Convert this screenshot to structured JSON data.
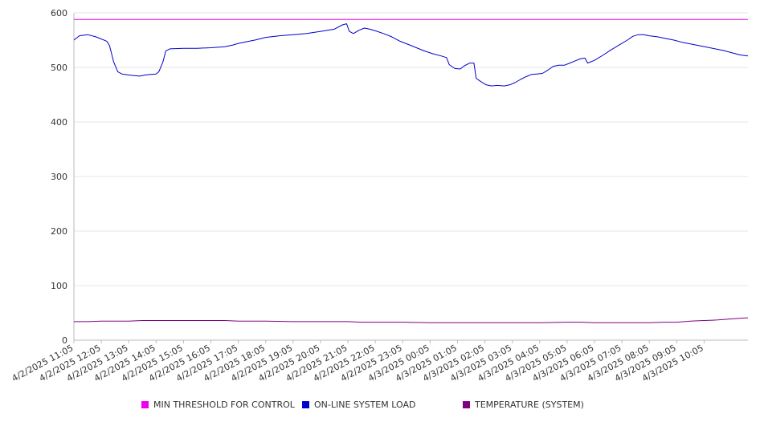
{
  "chart_data": {
    "type": "line",
    "x_ticks": [
      "4/2/2025 11:05",
      "4/2/2025 12:05",
      "4/2/2025 13:05",
      "4/2/2025 14:05",
      "4/2/2025 15:05",
      "4/2/2025 16:05",
      "4/2/2025 17:05",
      "4/2/2025 18:05",
      "4/2/2025 19:05",
      "4/2/2025 20:05",
      "4/2/2025 21:05",
      "4/2/2025 22:05",
      "4/2/2025 23:05",
      "4/3/2025 00:05",
      "4/3/2025 01:05",
      "4/3/2025 02:05",
      "4/3/2025 03:05",
      "4/3/2025 04:05",
      "4/3/2025 05:05",
      "4/3/2025 06:05",
      "4/3/2025 07:05",
      "4/3/2025 08:05",
      "4/3/2025 09:05",
      "4/3/2025 10:05"
    ],
    "y_ticks": [
      0,
      100,
      200,
      300,
      400,
      500,
      600
    ],
    "ylim": [
      0,
      600
    ],
    "xlim_hours": [
      0,
      24.6
    ],
    "grid": true,
    "legend_position": "bottom",
    "series": [
      {
        "name": "MIN THRESHOLD FOR CONTROL",
        "color": "#ee00ee",
        "points": [
          [
            0,
            588
          ],
          [
            24.6,
            588
          ]
        ]
      },
      {
        "name": "ON-LINE SYSTEM LOAD",
        "color": "#0000cc",
        "points": [
          [
            0,
            550
          ],
          [
            0.2,
            558
          ],
          [
            0.5,
            560
          ],
          [
            0.8,
            556
          ],
          [
            1.0,
            552
          ],
          [
            1.2,
            548
          ],
          [
            1.3,
            540
          ],
          [
            1.45,
            510
          ],
          [
            1.6,
            492
          ],
          [
            1.75,
            488
          ],
          [
            2.0,
            486
          ],
          [
            2.2,
            485
          ],
          [
            2.4,
            484
          ],
          [
            2.6,
            486
          ],
          [
            2.8,
            487
          ],
          [
            3.0,
            488
          ],
          [
            3.1,
            492
          ],
          [
            3.25,
            510
          ],
          [
            3.35,
            530
          ],
          [
            3.5,
            534
          ],
          [
            4.0,
            535
          ],
          [
            4.5,
            535
          ],
          [
            5.0,
            536
          ],
          [
            5.5,
            538
          ],
          [
            5.8,
            541
          ],
          [
            6.0,
            544
          ],
          [
            6.3,
            547
          ],
          [
            6.6,
            550
          ],
          [
            7.0,
            555
          ],
          [
            7.5,
            558
          ],
          [
            8.0,
            560
          ],
          [
            8.5,
            562
          ],
          [
            9.0,
            566
          ],
          [
            9.5,
            570
          ],
          [
            9.8,
            578
          ],
          [
            9.95,
            580
          ],
          [
            10.05,
            566
          ],
          [
            10.2,
            562
          ],
          [
            10.4,
            568
          ],
          [
            10.6,
            572
          ],
          [
            10.8,
            570
          ],
          [
            11.0,
            567
          ],
          [
            11.3,
            562
          ],
          [
            11.6,
            556
          ],
          [
            11.9,
            548
          ],
          [
            12.2,
            542
          ],
          [
            12.5,
            536
          ],
          [
            12.8,
            530
          ],
          [
            13.1,
            525
          ],
          [
            13.4,
            521
          ],
          [
            13.6,
            518
          ],
          [
            13.7,
            505
          ],
          [
            13.9,
            498
          ],
          [
            14.1,
            497
          ],
          [
            14.25,
            503
          ],
          [
            14.45,
            508
          ],
          [
            14.6,
            508
          ],
          [
            14.68,
            480
          ],
          [
            14.85,
            474
          ],
          [
            15.05,
            468
          ],
          [
            15.25,
            466
          ],
          [
            15.45,
            467
          ],
          [
            15.7,
            466
          ],
          [
            15.9,
            468
          ],
          [
            16.1,
            472
          ],
          [
            16.3,
            478
          ],
          [
            16.5,
            483
          ],
          [
            16.7,
            487
          ],
          [
            16.9,
            488
          ],
          [
            17.1,
            489
          ],
          [
            17.3,
            495
          ],
          [
            17.5,
            502
          ],
          [
            17.7,
            504
          ],
          [
            17.9,
            504
          ],
          [
            18.1,
            508
          ],
          [
            18.3,
            512
          ],
          [
            18.5,
            516
          ],
          [
            18.65,
            517
          ],
          [
            18.75,
            508
          ],
          [
            19.0,
            513
          ],
          [
            19.3,
            522
          ],
          [
            19.6,
            532
          ],
          [
            19.9,
            541
          ],
          [
            20.2,
            550
          ],
          [
            20.4,
            557
          ],
          [
            20.6,
            560
          ],
          [
            20.8,
            560
          ],
          [
            21.0,
            558
          ],
          [
            21.3,
            556
          ],
          [
            21.6,
            553
          ],
          [
            21.9,
            550
          ],
          [
            22.2,
            546
          ],
          [
            22.5,
            543
          ],
          [
            22.8,
            540
          ],
          [
            23.1,
            537
          ],
          [
            23.4,
            534
          ],
          [
            23.7,
            531
          ],
          [
            24.0,
            527
          ],
          [
            24.3,
            523
          ],
          [
            24.6,
            521
          ]
        ]
      },
      {
        "name": "TEMPERATURE (SYSTEM)",
        "color": "#800080",
        "points": [
          [
            0,
            34
          ],
          [
            0.5,
            34
          ],
          [
            1.0,
            35
          ],
          [
            1.5,
            35
          ],
          [
            2.0,
            35
          ],
          [
            2.5,
            36
          ],
          [
            3.0,
            36
          ],
          [
            3.5,
            36
          ],
          [
            4.0,
            36
          ],
          [
            4.5,
            36
          ],
          [
            5.0,
            36
          ],
          [
            5.5,
            36
          ],
          [
            6.0,
            35
          ],
          [
            7.0,
            35
          ],
          [
            8.0,
            34
          ],
          [
            9.0,
            34
          ],
          [
            10.0,
            34
          ],
          [
            10.5,
            33
          ],
          [
            11.0,
            33
          ],
          [
            11.5,
            33
          ],
          [
            12.0,
            33
          ],
          [
            13.0,
            32
          ],
          [
            14.0,
            32
          ],
          [
            15.0,
            32
          ],
          [
            16.0,
            32
          ],
          [
            17.0,
            32
          ],
          [
            18.0,
            33
          ],
          [
            18.5,
            33
          ],
          [
            19.0,
            32
          ],
          [
            20.0,
            32
          ],
          [
            21.0,
            32
          ],
          [
            21.5,
            33
          ],
          [
            22.0,
            33
          ],
          [
            22.5,
            35
          ],
          [
            23.0,
            36
          ],
          [
            23.5,
            37
          ],
          [
            24.0,
            39
          ],
          [
            24.3,
            40
          ],
          [
            24.6,
            41
          ]
        ]
      }
    ]
  }
}
